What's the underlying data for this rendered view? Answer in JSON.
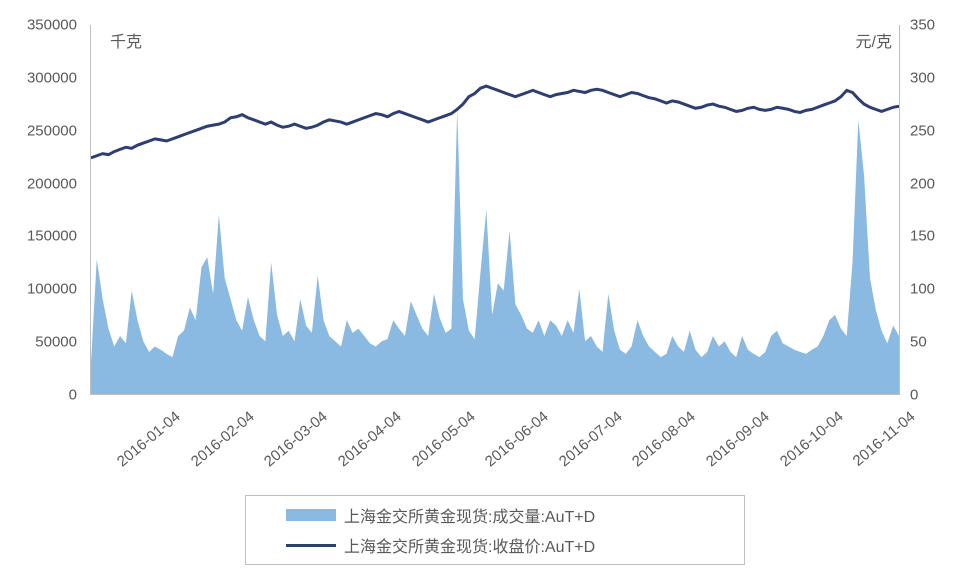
{
  "chart": {
    "type": "combo-area-line",
    "background_color": "#ffffff",
    "plot_border_color": "#bfbfbf",
    "axis_text_color": "#595959",
    "axis_fontsize": 15,
    "unit_fontsize": 16,
    "y_left": {
      "label": "千克",
      "min": 0,
      "max": 350000,
      "ticks": [
        0,
        50000,
        100000,
        150000,
        200000,
        250000,
        300000,
        350000
      ]
    },
    "y_right": {
      "label": "元/克",
      "min": 0,
      "max": 350,
      "ticks": [
        0,
        50,
        100,
        150,
        200,
        250,
        300,
        350
      ]
    },
    "x": {
      "labels": [
        "2016-01-04",
        "2016-02-04",
        "2016-03-04",
        "2016-04-04",
        "2016-05-04",
        "2016-06-04",
        "2016-07-04",
        "2016-08-04",
        "2016-09-04",
        "2016-10-04",
        "2016-11-04"
      ]
    },
    "series_area": {
      "name": "上海金交所黄金现货:成交量:AuT+D",
      "color": "#8ab9e2",
      "data": [
        30000,
        128000,
        90000,
        62000,
        45000,
        55000,
        48000,
        98000,
        70000,
        50000,
        40000,
        45000,
        42000,
        38000,
        35000,
        55000,
        60000,
        82000,
        70000,
        120000,
        130000,
        95000,
        170000,
        110000,
        90000,
        70000,
        60000,
        92000,
        70000,
        55000,
        50000,
        125000,
        75000,
        55000,
        60000,
        50000,
        90000,
        65000,
        58000,
        112000,
        70000,
        55000,
        50000,
        45000,
        70000,
        58000,
        62000,
        55000,
        48000,
        45000,
        50000,
        52000,
        70000,
        62000,
        55000,
        88000,
        75000,
        62000,
        55000,
        95000,
        72000,
        58000,
        62000,
        270000,
        90000,
        60000,
        52000,
        115000,
        175000,
        75000,
        105000,
        98000,
        155000,
        85000,
        75000,
        62000,
        58000,
        70000,
        55000,
        70000,
        65000,
        55000,
        70000,
        58000,
        100000,
        50000,
        55000,
        45000,
        40000,
        95000,
        60000,
        42000,
        38000,
        45000,
        70000,
        55000,
        45000,
        40000,
        35000,
        38000,
        55000,
        45000,
        40000,
        60000,
        42000,
        35000,
        40000,
        55000,
        45000,
        50000,
        40000,
        35000,
        55000,
        42000,
        38000,
        35000,
        40000,
        55000,
        60000,
        48000,
        45000,
        42000,
        40000,
        38000,
        42000,
        45000,
        55000,
        70000,
        75000,
        62000,
        55000,
        125000,
        260000,
        207000,
        110000,
        80000,
        60000,
        48000,
        65000,
        55000
      ]
    },
    "series_line": {
      "name": "上海金交所黄金现货:收盘价:AuT+D",
      "color": "#2c3e72",
      "line_width": 3,
      "data": [
        224,
        226,
        228,
        227,
        230,
        232,
        234,
        233,
        236,
        238,
        240,
        242,
        241,
        240,
        242,
        244,
        246,
        248,
        250,
        252,
        254,
        255,
        256,
        258,
        262,
        263,
        265,
        262,
        260,
        258,
        256,
        258,
        255,
        253,
        254,
        256,
        254,
        252,
        253,
        255,
        258,
        260,
        259,
        258,
        256,
        258,
        260,
        262,
        264,
        266,
        265,
        263,
        266,
        268,
        266,
        264,
        262,
        260,
        258,
        260,
        262,
        264,
        266,
        270,
        275,
        282,
        285,
        290,
        292,
        290,
        288,
        286,
        284,
        282,
        284,
        286,
        288,
        286,
        284,
        282,
        284,
        285,
        286,
        288,
        287,
        286,
        288,
        289,
        288,
        286,
        284,
        282,
        284,
        286,
        285,
        283,
        281,
        280,
        278,
        276,
        278,
        277,
        275,
        273,
        271,
        272,
        274,
        275,
        273,
        272,
        270,
        268,
        269,
        271,
        272,
        270,
        269,
        270,
        272,
        271,
        270,
        268,
        267,
        269,
        270,
        272,
        274,
        276,
        278,
        282,
        288,
        286,
        280,
        275,
        272,
        270,
        268,
        270,
        272,
        273
      ]
    },
    "legend": {
      "border_color": "#bfbfbf",
      "fontsize": 16,
      "items": [
        {
          "type": "area",
          "color": "#8ab9e2",
          "label": "上海金交所黄金现货:成交量:AuT+D"
        },
        {
          "type": "line",
          "color": "#2c3e72",
          "label": "上海金交所黄金现货:收盘价:AuT+D"
        }
      ]
    }
  }
}
